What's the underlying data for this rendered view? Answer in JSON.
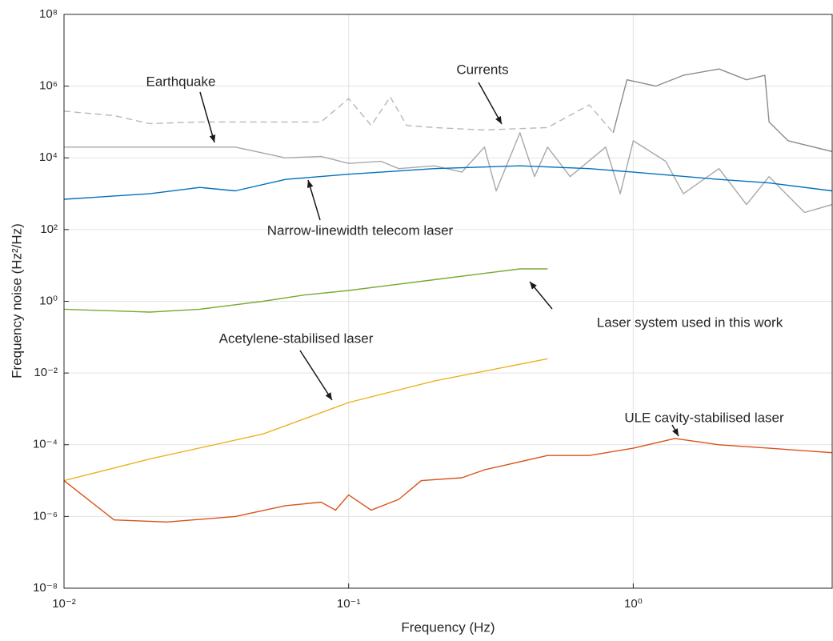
{
  "chart_data": {
    "type": "line",
    "xlabel": "Frequency (Hz)",
    "ylabel": "Frequency noise (Hz²/Hz)",
    "xscale": "log",
    "yscale": "log",
    "grid": true,
    "xlim": [
      0.01,
      5
    ],
    "ylim": [
      1e-08,
      100000000.0
    ],
    "xticks": [
      {
        "value": 0.01,
        "label": "10⁻²"
      },
      {
        "value": 0.1,
        "label": "10⁻¹"
      },
      {
        "value": 1,
        "label": "10⁰"
      }
    ],
    "yticks": [
      {
        "value": 1e-08,
        "label": "10⁻⁸"
      },
      {
        "value": 1e-06,
        "label": "10⁻⁶"
      },
      {
        "value": 0.0001,
        "label": "10⁻⁴"
      },
      {
        "value": 0.01,
        "label": "10⁻²"
      },
      {
        "value": 1,
        "label": "10⁰"
      },
      {
        "value": 100,
        "label": "10²"
      },
      {
        "value": 10000,
        "label": "10⁴"
      },
      {
        "value": 1000000,
        "label": "10⁶"
      },
      {
        "value": 100000000,
        "label": "10⁸"
      }
    ],
    "series": [
      {
        "name": "Currents",
        "color": "#b8b8b8",
        "dash": true,
        "x": [
          0.01,
          0.015,
          0.02,
          0.03,
          0.05,
          0.08,
          0.1,
          0.12,
          0.14,
          0.16,
          0.2,
          0.3,
          0.5,
          0.7,
          0.85
        ],
        "values": [
          200000,
          150000,
          90000,
          100000,
          100000,
          100000,
          450000,
          80000,
          500000,
          80000,
          70000,
          60000,
          70000,
          300000,
          50000
        ]
      },
      {
        "color": "#8c8c8c",
        "dash": false,
        "x": [
          0.85,
          0.95,
          1.2,
          1.5,
          2,
          2.5,
          2.9,
          3,
          3.5,
          5
        ],
        "values": [
          50000,
          1500000,
          1000000,
          2000000,
          3000000,
          1500000,
          2000000,
          100000,
          30000,
          15000
        ]
      },
      {
        "name": "Earthquake",
        "color": "#a8a8a8",
        "dash": false,
        "x": [
          0.01,
          0.04,
          0.06,
          0.08,
          0.1,
          0.13,
          0.15,
          0.2,
          0.25,
          0.3,
          0.33,
          0.4,
          0.45,
          0.5,
          0.6,
          0.8,
          0.9,
          1,
          1.3,
          1.5,
          2,
          2.5,
          3,
          4,
          5
        ],
        "values": [
          20000,
          20000,
          10000,
          11000,
          7000,
          8000,
          5000,
          6000,
          4000,
          20000,
          1200,
          50000,
          3000,
          20000,
          3000,
          20000,
          1000,
          30000,
          8000,
          1000,
          5000,
          500,
          3000,
          300,
          500
        ]
      },
      {
        "name": "Narrow-linewidth telecom laser",
        "color": "#0072bd",
        "dash": false,
        "x": [
          0.01,
          0.02,
          0.03,
          0.04,
          0.06,
          0.1,
          0.2,
          0.4,
          0.7,
          1,
          2,
          3,
          5
        ],
        "values": [
          700,
          1000,
          1500,
          1200,
          2500,
          3500,
          5000,
          6000,
          5000,
          4000,
          2500,
          2000,
          1200
        ]
      },
      {
        "name": "Laser system used in this work",
        "color": "#77ac30",
        "dash": false,
        "x": [
          0.01,
          0.02,
          0.03,
          0.05,
          0.07,
          0.1,
          0.15,
          0.2,
          0.3,
          0.4,
          0.5
        ],
        "values": [
          0.6,
          0.5,
          0.6,
          1,
          1.5,
          2,
          3,
          4,
          6,
          8,
          8
        ]
      },
      {
        "name": "Acetylene-stabilised laser",
        "color": "#edb120",
        "dash": false,
        "x": [
          0.01,
          0.02,
          0.05,
          0.1,
          0.2,
          0.5
        ],
        "values": [
          1e-05,
          4e-05,
          0.0002,
          0.0015,
          0.006,
          0.025
        ]
      },
      {
        "name": "ULE cavity-stabilised laser",
        "color": "#d95319",
        "dash": false,
        "x": [
          0.01,
          0.015,
          0.023,
          0.04,
          0.06,
          0.08,
          0.09,
          0.1,
          0.12,
          0.15,
          0.18,
          0.25,
          0.3,
          0.5,
          0.7,
          1,
          1.4,
          2,
          3,
          5
        ],
        "values": [
          1e-05,
          8e-07,
          7e-07,
          1e-06,
          2e-06,
          2.5e-06,
          1.5e-06,
          4e-06,
          1.5e-06,
          3e-06,
          1e-05,
          1.2e-05,
          2e-05,
          5e-05,
          5e-05,
          8e-05,
          0.00015,
          0.0001,
          8e-05,
          6e-05
        ]
      }
    ]
  }
}
